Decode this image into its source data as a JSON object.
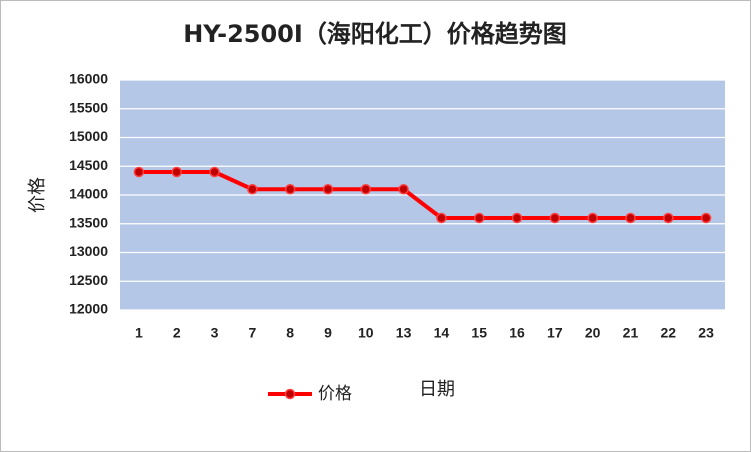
{
  "chart_data": {
    "type": "line",
    "title": "HY-2500I（海阳化工）价格趋势图",
    "x_label": "日期",
    "y_label": "价格",
    "categories": [
      "1",
      "2",
      "3",
      "7",
      "8",
      "9",
      "10",
      "13",
      "14",
      "15",
      "16",
      "17",
      "20",
      "21",
      "22",
      "23"
    ],
    "series": [
      {
        "name": "价格",
        "color": "#ff0000",
        "values": [
          14400,
          14400,
          14400,
          14100,
          14100,
          14100,
          14100,
          14100,
          13600,
          13600,
          13600,
          13600,
          13600,
          13600,
          13600,
          13600
        ]
      }
    ],
    "ylim": [
      12000,
      16000
    ],
    "yticks": [
      12000,
      12500,
      13000,
      13500,
      14000,
      14500,
      15000,
      15500,
      16000
    ],
    "grid": true,
    "legend": "bottom-left"
  }
}
